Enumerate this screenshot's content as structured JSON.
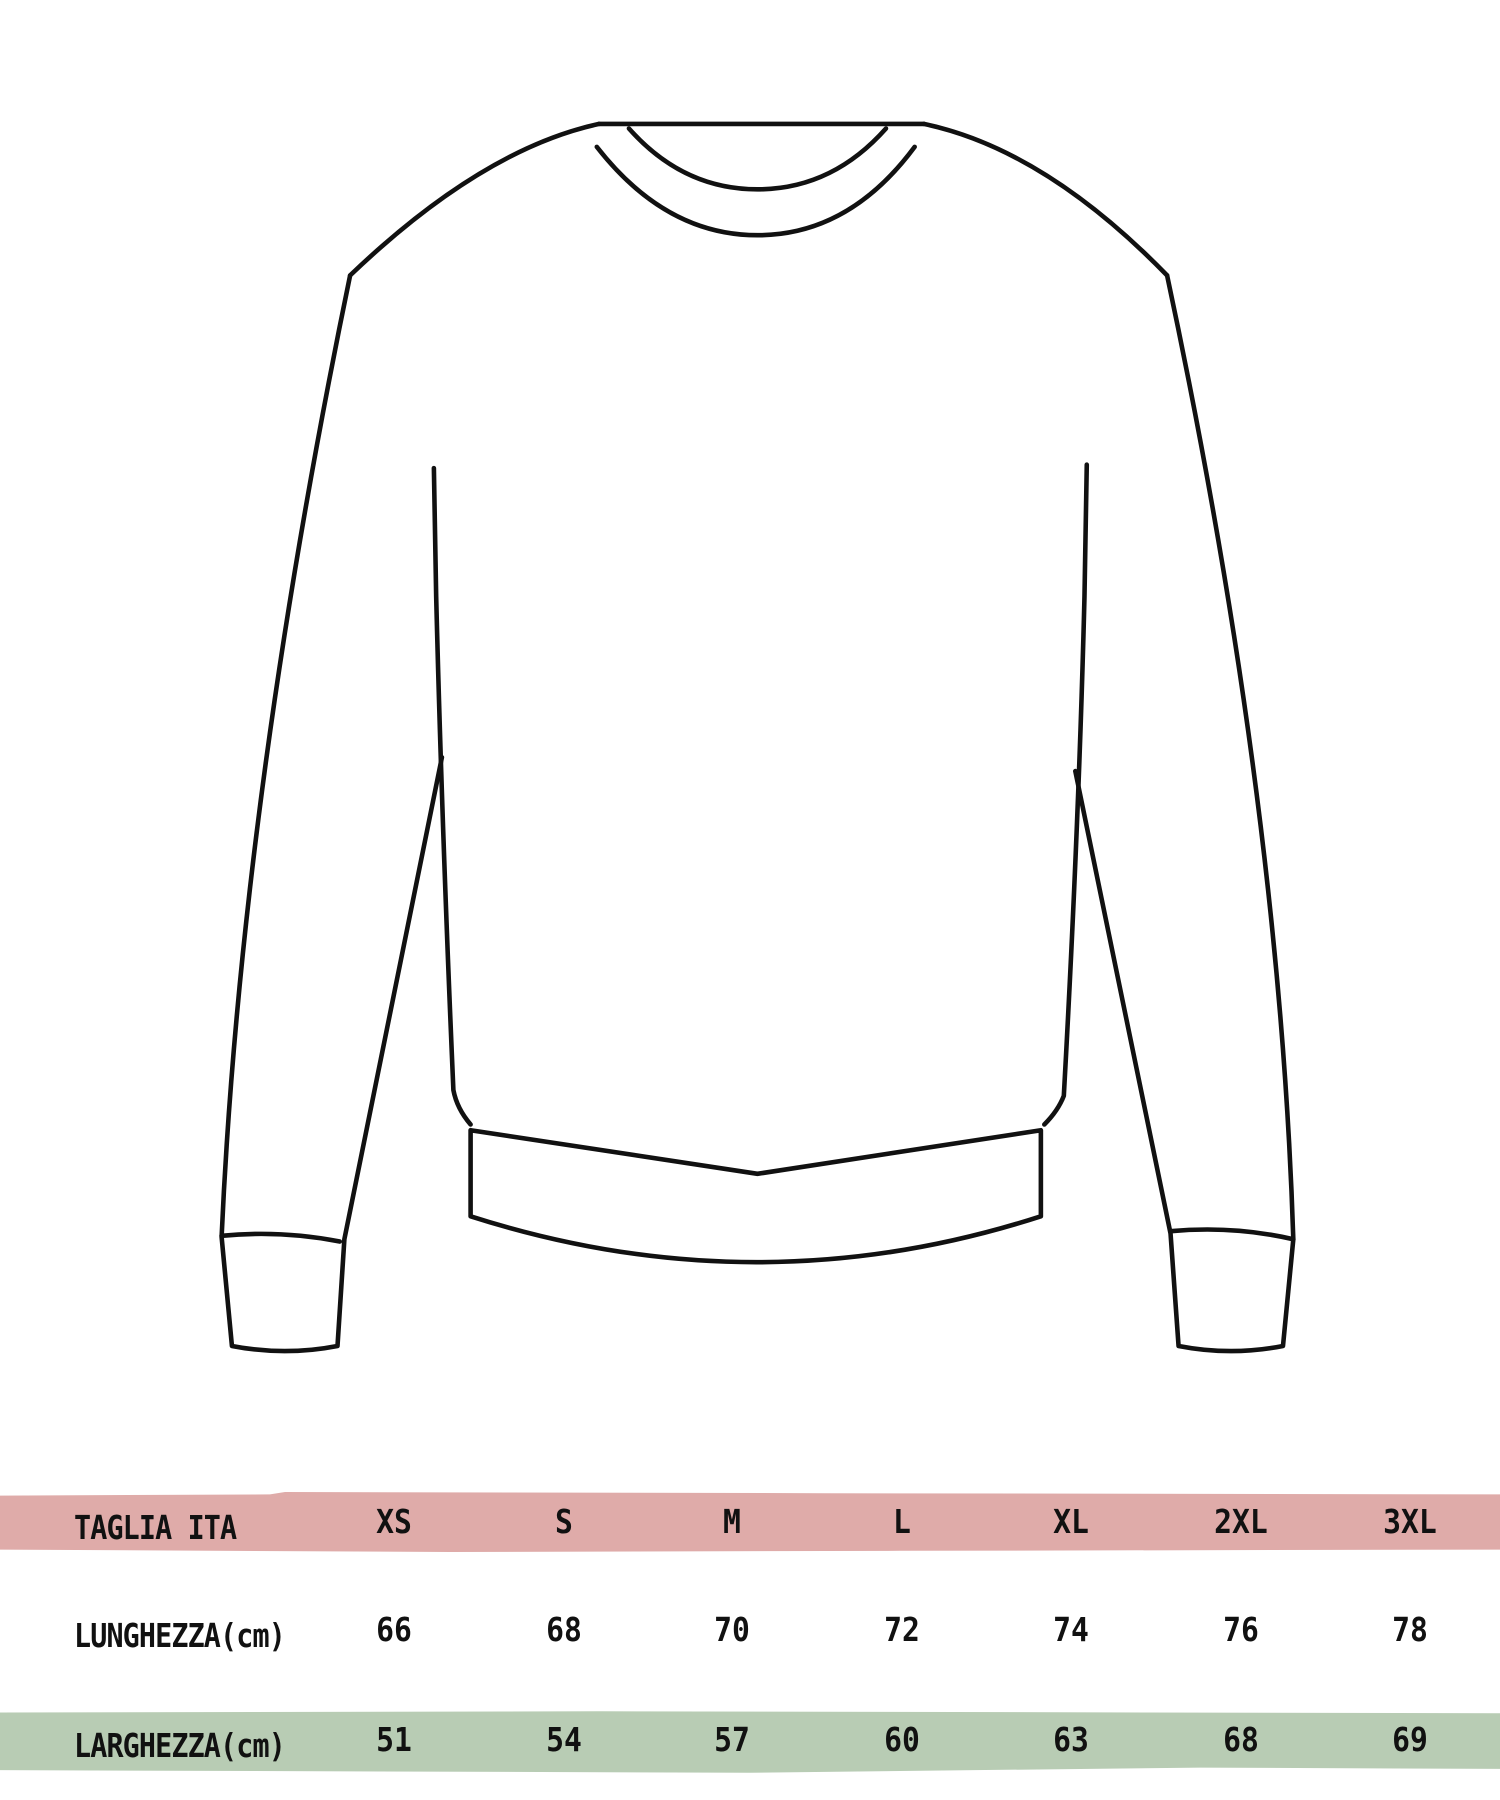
{
  "colors": {
    "header_band": "#dfaba9",
    "width_band": "#b8ccb4",
    "outline": "#111111"
  },
  "illustration": "sweater-outline",
  "table": {
    "header": {
      "label": "TAGLIA ITA",
      "sizes": [
        "XS",
        "S",
        "M",
        "L",
        "XL",
        "2XL",
        "3XL"
      ]
    },
    "rows": [
      {
        "label": "LUNGHEZZA(cm)",
        "values": [
          "66",
          "68",
          "70",
          "72",
          "74",
          "76",
          "78"
        ]
      },
      {
        "label": "LARGHEZZA(cm)",
        "values": [
          "51",
          "54",
          "57",
          "60",
          "63",
          "68",
          "69"
        ]
      }
    ]
  }
}
